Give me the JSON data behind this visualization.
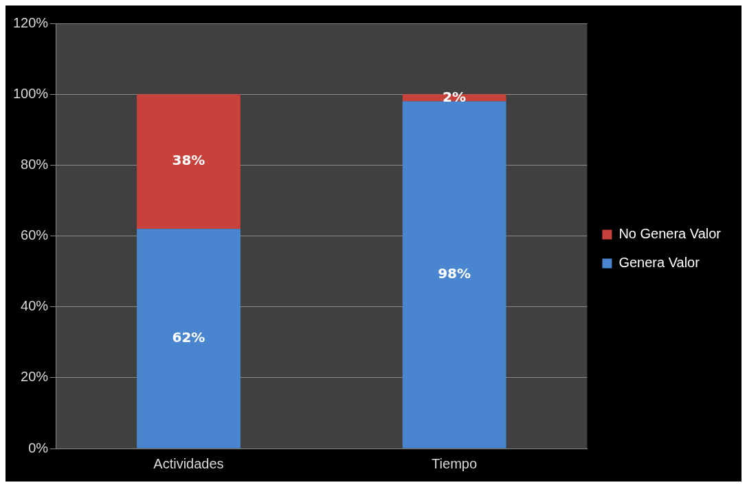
{
  "chart_data": {
    "type": "bar",
    "stacked": true,
    "categories": [
      "Actividades",
      "Tiempo"
    ],
    "series": [
      {
        "name": "Genera Valor",
        "color": "#4a86d0",
        "values": [
          62,
          98
        ],
        "value_labels": [
          "62%",
          "98%"
        ]
      },
      {
        "name": "No Genera Valor",
        "color": "#c8413b",
        "values": [
          38,
          2
        ],
        "value_labels": [
          "38%",
          "2%"
        ]
      }
    ],
    "ylim": [
      0,
      120
    ],
    "yticks": [
      {
        "value": 0,
        "label": "0%"
      },
      {
        "value": 20,
        "label": "20%"
      },
      {
        "value": 40,
        "label": "40%"
      },
      {
        "value": 60,
        "label": "60%"
      },
      {
        "value": 80,
        "label": "80%"
      },
      {
        "value": 100,
        "label": "100%"
      },
      {
        "value": 120,
        "label": "120%"
      }
    ],
    "grid": "y",
    "legend": "right"
  }
}
